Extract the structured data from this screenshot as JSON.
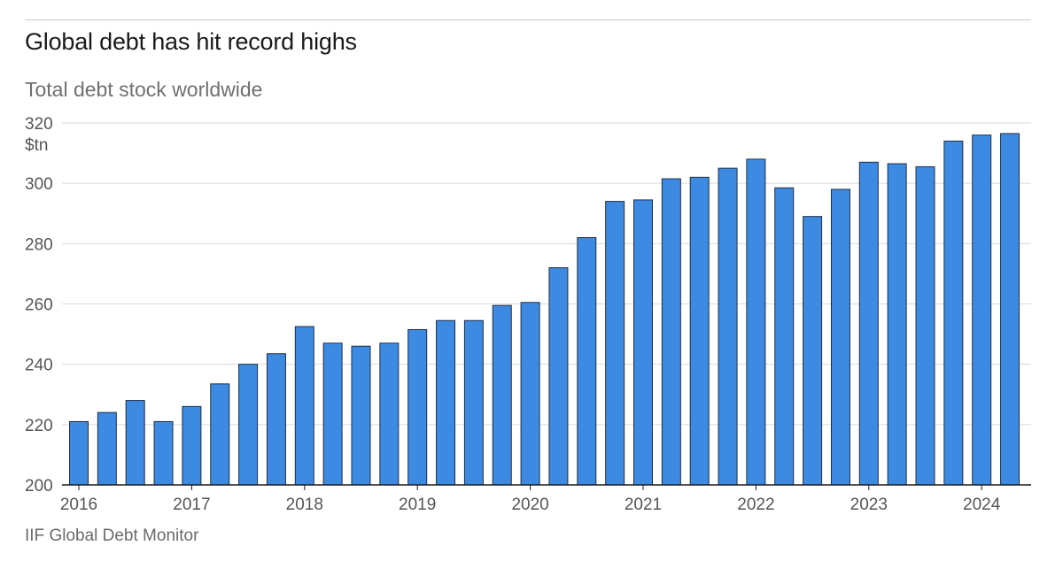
{
  "chart_data": {
    "type": "bar",
    "title": "Global debt has hit record highs",
    "subtitle": "Total debt stock worldwide",
    "source": "IIF Global Debt Monitor",
    "ylabel": "",
    "y_unit": "$tn",
    "ylim": [
      200,
      320
    ],
    "y_ticks": [
      200,
      220,
      240,
      260,
      280,
      300,
      320
    ],
    "x_ticks": [
      "2016",
      "2017",
      "2018",
      "2019",
      "2020",
      "2021",
      "2022",
      "2023",
      "2024"
    ],
    "grid": true,
    "legend": "none",
    "bar_color": "#3d8ae3",
    "bar_edge_color": "#1f2f45",
    "categories": [
      "2016 Q1",
      "2016 Q2",
      "2016 Q3",
      "2016 Q4",
      "2017 Q1",
      "2017 Q2",
      "2017 Q3",
      "2017 Q4",
      "2018 Q1",
      "2018 Q2",
      "2018 Q3",
      "2018 Q4",
      "2019 Q1",
      "2019 Q2",
      "2019 Q3",
      "2019 Q4",
      "2020 Q1",
      "2020 Q2",
      "2020 Q3",
      "2020 Q4",
      "2021 Q1",
      "2021 Q2",
      "2021 Q3",
      "2021 Q4",
      "2022 Q1",
      "2022 Q2",
      "2022 Q3",
      "2022 Q4",
      "2023 Q1",
      "2023 Q2",
      "2023 Q3",
      "2023 Q4",
      "2024 Q1",
      "2024 Q2"
    ],
    "values": [
      221,
      224,
      228,
      221,
      226,
      233.5,
      240,
      243.5,
      252.5,
      247,
      246,
      247,
      251.5,
      254.5,
      254.5,
      259.5,
      260.5,
      272,
      282,
      294,
      294.5,
      301.5,
      302,
      305,
      308,
      298.5,
      289,
      298,
      307,
      306.5,
      305.5,
      314,
      316,
      316.5
    ]
  }
}
